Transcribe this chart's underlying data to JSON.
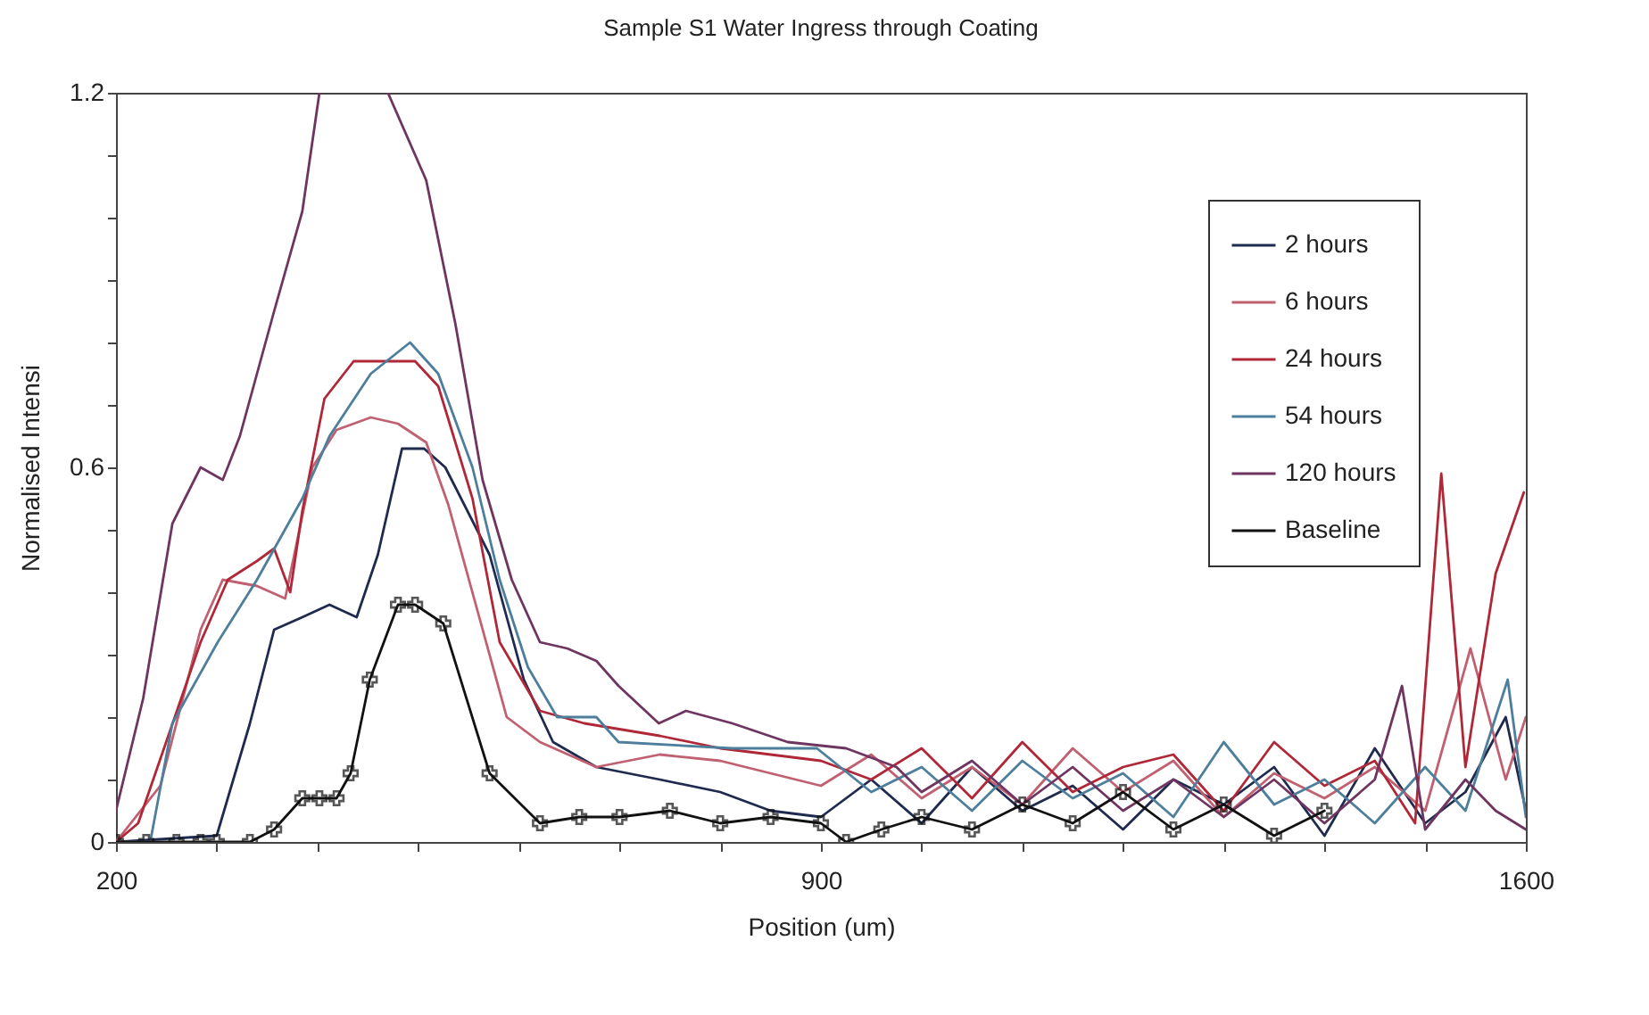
{
  "chart_data": {
    "type": "line",
    "title": "Sample S1 Water Ingress through Coating",
    "xlabel": "Position (um)",
    "ylabel": "Normalised Intensi",
    "xlim": [
      200,
      1600
    ],
    "xticks": [
      200,
      {
        "value": 300,
        "label": null
      },
      {
        "value": 400,
        "label": null
      },
      {
        "value": 500,
        "label": null
      },
      {
        "value": 600,
        "label": null
      },
      {
        "value": 700,
        "label": null
      },
      {
        "value": 800,
        "label": null
      },
      900,
      {
        "value": 1000,
        "label": null
      },
      {
        "value": 1100,
        "label": null
      },
      {
        "value": 1200,
        "label": null
      },
      {
        "value": 1300,
        "label": null
      },
      {
        "value": 1400,
        "label": null
      },
      {
        "value": 1500,
        "label": null
      },
      1600
    ],
    "ylim": [
      0,
      1.2
    ],
    "yticks": [
      0,
      {
        "value": 0.1,
        "label": null
      },
      {
        "value": 0.2,
        "label": null
      },
      {
        "value": 0.3,
        "label": null
      },
      {
        "value": 0.4,
        "label": null
      },
      {
        "value": 0.5,
        "label": null
      },
      0.6,
      {
        "value": 0.7,
        "label": null
      },
      {
        "value": 0.8,
        "label": null
      },
      {
        "value": 0.9,
        "label": null
      },
      {
        "value": 1.0,
        "label": null
      },
      {
        "value": 1.1,
        "label": null
      },
      1.2
    ],
    "grid": false,
    "legend": "top right",
    "line_style": "solid",
    "series": [
      {
        "name": "2 hours",
        "color": "#1f2a4f",
        "marker": "none",
        "x": [
          200,
          300,
          333,
          357,
          385,
          412,
          439,
          460,
          484,
          506,
          527,
          571,
          605,
          634,
          677,
          740,
          800,
          850,
          900,
          950,
          1000,
          1050,
          1100,
          1150,
          1200,
          1250,
          1300,
          1350,
          1400,
          1450,
          1500,
          1540,
          1580,
          1600
        ],
        "values": [
          0,
          0.01,
          0.19,
          0.34,
          0.36,
          0.38,
          0.36,
          0.46,
          0.63,
          0.63,
          0.6,
          0.46,
          0.26,
          0.16,
          0.12,
          0.1,
          0.08,
          0.05,
          0.04,
          0.1,
          0.03,
          0.12,
          0.05,
          0.09,
          0.02,
          0.1,
          0.06,
          0.12,
          0.01,
          0.15,
          0.03,
          0.08,
          0.2,
          0.05
        ]
      },
      {
        "name": "6 hours",
        "color": "#c06070",
        "marker": "none",
        "x": [
          200,
          244,
          284,
          306,
          340,
          368,
          395,
          419,
          453,
          480,
          508,
          530,
          559,
          588,
          621,
          677,
          740,
          800,
          850,
          900,
          950,
          1000,
          1050,
          1100,
          1150,
          1200,
          1250,
          1300,
          1350,
          1400,
          1450,
          1500,
          1545,
          1580,
          1600
        ],
        "values": [
          0,
          0.09,
          0.34,
          0.42,
          0.41,
          0.39,
          0.6,
          0.66,
          0.68,
          0.67,
          0.64,
          0.54,
          0.37,
          0.2,
          0.16,
          0.12,
          0.14,
          0.13,
          0.11,
          0.09,
          0.14,
          0.07,
          0.12,
          0.06,
          0.15,
          0.08,
          0.13,
          0.04,
          0.11,
          0.07,
          0.12,
          0.05,
          0.31,
          0.1,
          0.2
        ]
      },
      {
        "name": "24 hours",
        "color": "#b02838",
        "marker": "none",
        "x": [
          200,
          222,
          284,
          311,
          340,
          357,
          373,
          385,
          407,
          436,
          463,
          497,
          520,
          554,
          581,
          621,
          665,
          740,
          800,
          850,
          900,
          950,
          1000,
          1050,
          1100,
          1150,
          1200,
          1250,
          1300,
          1350,
          1400,
          1450,
          1490,
          1516,
          1540,
          1570,
          1598
        ],
        "values": [
          0,
          0.03,
          0.32,
          0.42,
          0.45,
          0.47,
          0.4,
          0.53,
          0.71,
          0.77,
          0.77,
          0.77,
          0.73,
          0.55,
          0.32,
          0.21,
          0.19,
          0.17,
          0.15,
          0.14,
          0.13,
          0.1,
          0.15,
          0.07,
          0.16,
          0.08,
          0.12,
          0.14,
          0.05,
          0.16,
          0.09,
          0.13,
          0.03,
          0.59,
          0.12,
          0.43,
          0.56
        ]
      },
      {
        "name": "54 hours",
        "color": "#4d7f9c",
        "marker": "none",
        "x": [
          200,
          234,
          256,
          301,
          340,
          385,
          412,
          453,
          492,
          520,
          554,
          581,
          609,
          638,
          677,
          699,
          812,
          896,
          950,
          1000,
          1050,
          1100,
          1150,
          1200,
          1250,
          1300,
          1350,
          1400,
          1450,
          1500,
          1540,
          1582,
          1600
        ],
        "values": [
          0,
          0.0,
          0.19,
          0.32,
          0.42,
          0.55,
          0.65,
          0.75,
          0.8,
          0.75,
          0.6,
          0.42,
          0.28,
          0.2,
          0.2,
          0.16,
          0.15,
          0.15,
          0.08,
          0.12,
          0.05,
          0.13,
          0.07,
          0.11,
          0.04,
          0.16,
          0.06,
          0.1,
          0.03,
          0.12,
          0.05,
          0.26,
          0.04
        ]
      },
      {
        "name": "120 hours",
        "color": "#6e3560",
        "marker": "none",
        "x": [
          200,
          227,
          256,
          284,
          306,
          323,
          357,
          385,
          402,
          436,
          470,
          508,
          537,
          564,
          593,
          621,
          648,
          677,
          699,
          739,
          766,
          812,
          867,
          925,
          975,
          1000,
          1050,
          1100,
          1150,
          1200,
          1250,
          1300,
          1350,
          1400,
          1450,
          1477,
          1500,
          1540,
          1570,
          1600
        ],
        "values": [
          0.05,
          0.23,
          0.51,
          0.6,
          0.58,
          0.65,
          0.85,
          1.01,
          1.2,
          null,
          1.2,
          1.06,
          0.83,
          0.58,
          0.42,
          0.32,
          0.31,
          0.29,
          0.25,
          0.19,
          0.21,
          0.19,
          0.16,
          0.15,
          0.12,
          0.08,
          0.13,
          0.06,
          0.12,
          0.05,
          0.1,
          0.04,
          0.1,
          0.03,
          0.1,
          0.25,
          0.02,
          0.1,
          0.05,
          0.02
        ]
      },
      {
        "name": "Baseline",
        "color": "#111111",
        "marker": "cross",
        "x": [
          200,
          230,
          260,
          284,
          300,
          333,
          357,
          385,
          402,
          419,
          433,
          452,
          480,
          497,
          525,
          571,
          621,
          660,
          700,
          750,
          800,
          850,
          900,
          925,
          960,
          1000,
          1050,
          1100,
          1150,
          1200,
          1250,
          1300,
          1350,
          1400
        ],
        "values": [
          0,
          0,
          0,
          0,
          0,
          0,
          0.02,
          0.07,
          0.07,
          0.07,
          0.11,
          0.26,
          0.38,
          0.38,
          0.35,
          0.11,
          0.03,
          0.04,
          0.04,
          0.05,
          0.03,
          0.04,
          0.03,
          0.0,
          0.02,
          0.04,
          0.02,
          0.06,
          0.03,
          0.08,
          0.02,
          0.06,
          0.01,
          0.05
        ]
      }
    ]
  }
}
